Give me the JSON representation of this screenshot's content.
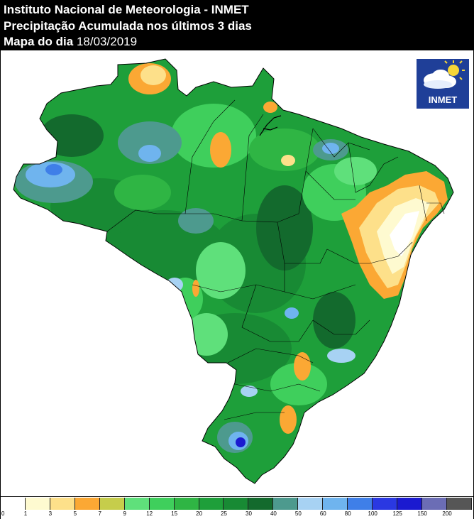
{
  "header": {
    "line1": "Instituto Nacional de Meteorologia - INMET",
    "line2": "Precipitação Acumulada nos últimos 3 dias",
    "line3_label": "Mapa do dia",
    "line3_date": "18/03/2019"
  },
  "logo": {
    "text": "INMET"
  },
  "legend": {
    "labels": [
      "0",
      "1",
      "3",
      "5",
      "7",
      "9",
      "12",
      "15",
      "20",
      "25",
      "30",
      "40",
      "50",
      "60",
      "80",
      "100",
      "125",
      "150",
      "200"
    ],
    "colors": [
      "#ffffff",
      "#fefad0",
      "#fde08a",
      "#fba834",
      "#c6cd4b",
      "#5fe07b",
      "#3fcf5c",
      "#2fb544",
      "#1e9f3a",
      "#188a34",
      "#136a2d",
      "#4d9a8e",
      "#a7d2f3",
      "#6fb4ee",
      "#3f7fe8",
      "#2a38e2",
      "#1b1ad0",
      "#6b6db5",
      "#565656"
    ]
  },
  "map": {
    "colors": {
      "background": "#ffffff",
      "land": "#1e9f3a",
      "border": "#000000"
    }
  }
}
